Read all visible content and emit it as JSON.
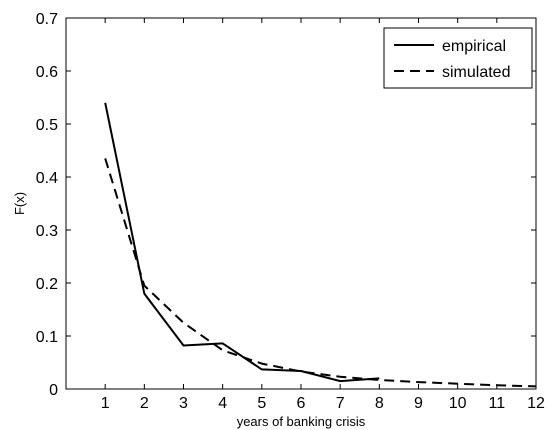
{
  "chart_data": {
    "type": "line",
    "title": "",
    "xlabel": "years of banking crisis",
    "ylabel": "F(x)",
    "xlim": [
      0,
      12
    ],
    "ylim": [
      0,
      0.7
    ],
    "xticks": [
      1,
      2,
      3,
      4,
      5,
      6,
      7,
      8,
      9,
      10,
      11,
      12
    ],
    "yticks": [
      0,
      0.1,
      0.2,
      0.3,
      0.4,
      0.5,
      0.6,
      0.7
    ],
    "grid": false,
    "legend_position": "top-right",
    "series": [
      {
        "name": "empirical",
        "style": "solid",
        "color": "#000000",
        "x": [
          1,
          2,
          3,
          4,
          5,
          6,
          7,
          8
        ],
        "y": [
          0.54,
          0.18,
          0.082,
          0.086,
          0.037,
          0.034,
          0.015,
          0.02
        ]
      },
      {
        "name": "simulated",
        "style": "dashed",
        "color": "#000000",
        "x": [
          1,
          2,
          3,
          4,
          5,
          6,
          7,
          8,
          9,
          10,
          11,
          12
        ],
        "y": [
          0.435,
          0.195,
          0.125,
          0.073,
          0.048,
          0.033,
          0.023,
          0.017,
          0.013,
          0.01,
          0.007,
          0.005
        ]
      }
    ]
  }
}
